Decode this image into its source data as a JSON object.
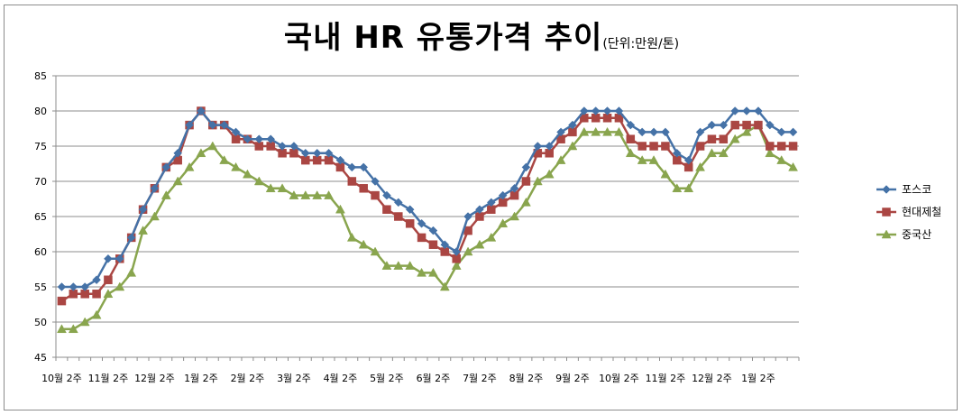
{
  "chart_data": {
    "type": "line",
    "title": "국내 HR 유통가격 추이",
    "subtitle": "(단위:만원/톤)",
    "ylim": [
      45,
      85
    ],
    "yticks": [
      45,
      50,
      55,
      60,
      65,
      70,
      75,
      80,
      85
    ],
    "grid": true,
    "legend_position": "right",
    "x": [
      "10월 2주",
      "",
      "",
      "",
      "11월 2주",
      "",
      "",
      "",
      "12월 2주",
      "",
      "",
      "",
      "1월 2주",
      "",
      "",
      "",
      "2월 2주",
      "",
      "",
      "",
      "3월 2주",
      "",
      "",
      "",
      "4월 2주",
      "",
      "",
      "",
      "5월 2주",
      "",
      "",
      "",
      "6월 2주",
      "",
      "",
      "",
      "7월 2주",
      "",
      "",
      "",
      "8월 2주",
      "",
      "",
      "",
      "9월 2주",
      "",
      "",
      "",
      "10월 2주",
      "",
      "",
      "",
      "11월 2주",
      "",
      "",
      "",
      "12월 2주",
      "",
      "",
      "",
      "1월 2주",
      "",
      "",
      ""
    ],
    "xtick_labels": [
      "10월 2주",
      "11월 2주",
      "12월 2주",
      "1월 2주",
      "2월 2주",
      "3월 2주",
      "4월 2주",
      "5월 2주",
      "6월 2주",
      "7월 2주",
      "8월 2주",
      "9월 2주",
      "10월 2주",
      "11월 2주",
      "12월 2주",
      "1월 2주"
    ],
    "series": [
      {
        "name": "포스코",
        "color": "#4572a7",
        "marker": "diamond",
        "values": [
          55,
          55,
          55,
          56,
          59,
          59,
          62,
          66,
          69,
          72,
          74,
          78,
          80,
          78,
          78,
          77,
          76,
          76,
          76,
          75,
          75,
          74,
          74,
          74,
          73,
          72,
          72,
          70,
          68,
          67,
          66,
          64,
          63,
          61,
          60,
          65,
          66,
          67,
          68,
          69,
          72,
          75,
          75,
          77,
          78,
          80,
          80,
          80,
          80,
          78,
          77,
          77,
          77,
          74,
          73,
          77,
          78,
          78,
          80,
          80,
          80,
          78,
          77,
          77
        ]
      },
      {
        "name": "현대제철",
        "color": "#aa4643",
        "marker": "square",
        "values": [
          53,
          54,
          54,
          54,
          56,
          59,
          62,
          66,
          69,
          72,
          73,
          78,
          80,
          78,
          78,
          76,
          76,
          75,
          75,
          74,
          74,
          73,
          73,
          73,
          72,
          70,
          69,
          68,
          66,
          65,
          64,
          62,
          61,
          60,
          59,
          63,
          65,
          66,
          67,
          68,
          70,
          74,
          74,
          76,
          77,
          79,
          79,
          79,
          79,
          76,
          75,
          75,
          75,
          73,
          72,
          75,
          76,
          76,
          78,
          78,
          78,
          75,
          75,
          75
        ]
      },
      {
        "name": "중국산",
        "color": "#89a54e",
        "marker": "triangle",
        "values": [
          49,
          49,
          50,
          51,
          54,
          55,
          57,
          63,
          65,
          68,
          70,
          72,
          74,
          75,
          73,
          72,
          71,
          70,
          69,
          69,
          68,
          68,
          68,
          68,
          66,
          62,
          61,
          60,
          58,
          58,
          58,
          57,
          57,
          55,
          58,
          60,
          61,
          62,
          64,
          65,
          67,
          70,
          71,
          73,
          75,
          77,
          77,
          77,
          77,
          74,
          73,
          73,
          71,
          69,
          69,
          72,
          74,
          74,
          76,
          77,
          78,
          74,
          73,
          72
        ]
      }
    ]
  }
}
